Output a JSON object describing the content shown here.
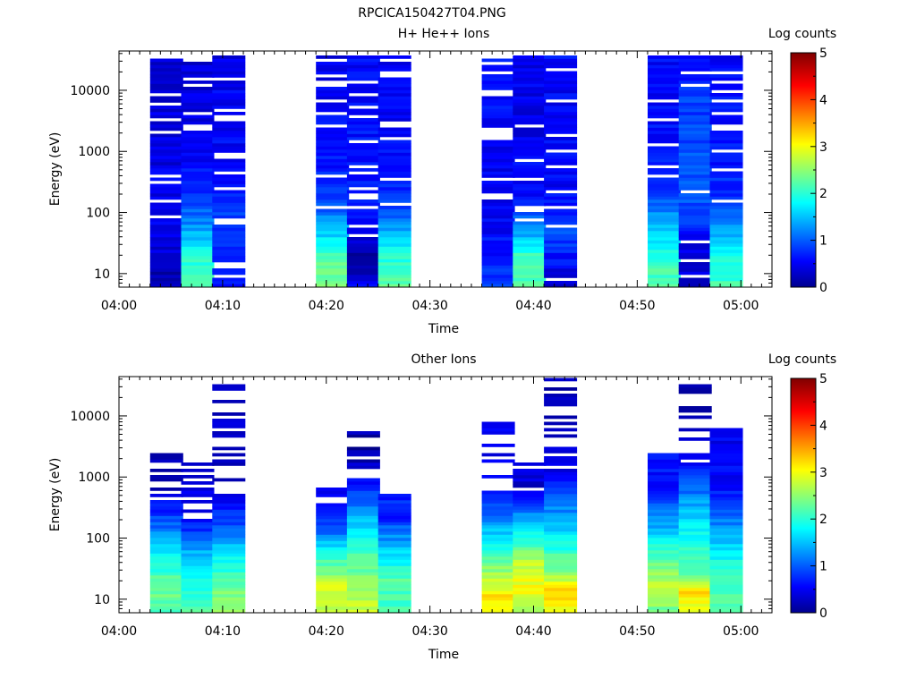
{
  "figure_title": "RPCICA150427T04.PNG",
  "colorbar_scale": {
    "label": "Log counts",
    "ticks": [
      "0",
      "1",
      "2",
      "3",
      "4",
      "5"
    ],
    "range": [
      0,
      5
    ]
  },
  "chart_data": [
    {
      "type": "heatmap",
      "title": "H+ He++ Ions",
      "xlabel": "Time",
      "ylabel": "Energy (eV)",
      "colorbar_label": "Log counts",
      "xlim": [
        "04:00",
        "05:03"
      ],
      "ylim": [
        6,
        44000
      ],
      "yscale": "log",
      "xtick_labels": [
        "04:00",
        "04:10",
        "04:20",
        "04:30",
        "04:40",
        "04:50",
        "05:00"
      ],
      "ytick_labels": [
        "10",
        "100",
        "1000",
        "10000"
      ],
      "column_times": [
        "04:03",
        "04:06",
        "04:09",
        "04:19",
        "04:22",
        "04:25",
        "04:35",
        "04:38",
        "04:41",
        "04:51",
        "04:54",
        "04:57"
      ],
      "column_profiles": [
        [
          [
            0,
            0.2
          ],
          [
            20,
            0.6
          ],
          [
            40,
            0.5
          ],
          [
            80,
            0.4
          ]
        ],
        [
          [
            0,
            2.2
          ],
          [
            10,
            2.0
          ],
          [
            18,
            1.4
          ],
          [
            30,
            0.8
          ],
          [
            50,
            0.5
          ],
          [
            80,
            0.4
          ]
        ],
        [
          [
            0,
            0.6
          ],
          [
            10,
            0.8
          ],
          [
            20,
            1.0
          ],
          [
            30,
            0.7
          ],
          [
            50,
            0.6
          ],
          [
            80,
            0.5
          ]
        ],
        [
          [
            0,
            2.5
          ],
          [
            10,
            2.2
          ],
          [
            18,
            1.5
          ],
          [
            26,
            1.0
          ],
          [
            40,
            0.7
          ],
          [
            80,
            0.5
          ]
        ],
        [
          [
            0,
            0.8
          ],
          [
            5,
            0.2
          ],
          [
            12,
            0.2
          ],
          [
            22,
            0.8
          ],
          [
            40,
            0.7
          ],
          [
            80,
            0.6
          ]
        ],
        [
          [
            0,
            2.4
          ],
          [
            10,
            2.0
          ],
          [
            18,
            1.4
          ],
          [
            28,
            0.8
          ],
          [
            50,
            0.6
          ],
          [
            80,
            0.5
          ]
        ],
        [
          [
            0,
            0.9
          ],
          [
            12,
            0.7
          ],
          [
            30,
            0.5
          ],
          [
            50,
            0.6
          ],
          [
            80,
            0.8
          ]
        ],
        [
          [
            0,
            2.3
          ],
          [
            10,
            2.1
          ],
          [
            18,
            1.3
          ],
          [
            28,
            0.7
          ],
          [
            50,
            0.5
          ],
          [
            80,
            0.6
          ]
        ],
        [
          [
            0,
            0.3
          ],
          [
            8,
            0.7
          ],
          [
            18,
            1.0
          ],
          [
            30,
            0.6
          ],
          [
            60,
            0.6
          ],
          [
            80,
            0.7
          ]
        ],
        [
          [
            0,
            2.3
          ],
          [
            10,
            2.1
          ],
          [
            18,
            1.6
          ],
          [
            28,
            1.0
          ],
          [
            40,
            0.7
          ],
          [
            80,
            0.6
          ]
        ],
        [
          [
            0,
            0.4
          ],
          [
            12,
            0.5
          ],
          [
            24,
            1.0
          ],
          [
            40,
            1.0
          ],
          [
            60,
            0.9
          ],
          [
            80,
            0.6
          ]
        ],
        [
          [
            0,
            2.2
          ],
          [
            10,
            2.0
          ],
          [
            18,
            1.4
          ],
          [
            28,
            0.9
          ],
          [
            40,
            0.7
          ],
          [
            80,
            0.6
          ]
        ]
      ],
      "column_top_bins": [
        74,
        74,
        74,
        74,
        74,
        74,
        74,
        74,
        74,
        74,
        74,
        74
      ]
    },
    {
      "type": "heatmap",
      "title": "Other Ions",
      "xlabel": "Time",
      "ylabel": "Energy (eV)",
      "colorbar_label": "Log counts",
      "xlim": [
        "04:00",
        "05:03"
      ],
      "ylim": [
        6,
        44000
      ],
      "yscale": "log",
      "xtick_labels": [
        "04:00",
        "04:10",
        "04:20",
        "04:30",
        "04:40",
        "04:50",
        "05:00"
      ],
      "ytick_labels": [
        "10",
        "100",
        "1000",
        "10000"
      ],
      "column_times": [
        "04:03",
        "04:06",
        "04:09",
        "04:19",
        "04:22",
        "04:25",
        "04:35",
        "04:38",
        "04:41",
        "04:51",
        "04:54",
        "04:57"
      ],
      "column_profiles": [
        [
          [
            0,
            2.1
          ],
          [
            5,
            2.4
          ],
          [
            12,
            2.2
          ],
          [
            22,
            1.5
          ],
          [
            32,
            0.8
          ],
          [
            40,
            0.3
          ]
        ],
        [
          [
            0,
            2.3
          ],
          [
            10,
            2.0
          ],
          [
            22,
            1.3
          ],
          [
            30,
            0.5
          ]
        ],
        [
          [
            0,
            2.6
          ],
          [
            8,
            2.4
          ],
          [
            18,
            1.8
          ],
          [
            28,
            1.0
          ],
          [
            40,
            0.4
          ]
        ],
        [
          [
            0,
            2.8
          ],
          [
            8,
            2.9
          ],
          [
            16,
            2.2
          ],
          [
            24,
            1.3
          ],
          [
            34,
            0.5
          ]
        ],
        [
          [
            0,
            2.9
          ],
          [
            8,
            2.6
          ],
          [
            18,
            2.2
          ],
          [
            30,
            1.5
          ],
          [
            40,
            0.7
          ],
          [
            50,
            0.2
          ]
        ],
        [
          [
            0,
            2.2
          ],
          [
            10,
            2.3
          ],
          [
            20,
            1.6
          ],
          [
            30,
            0.8
          ]
        ],
        [
          [
            0,
            3.0
          ],
          [
            4,
            3.3
          ],
          [
            10,
            2.8
          ],
          [
            18,
            2.2
          ],
          [
            28,
            1.4
          ],
          [
            40,
            0.5
          ]
        ],
        [
          [
            0,
            2.6
          ],
          [
            6,
            3.1
          ],
          [
            14,
            2.9
          ],
          [
            24,
            2.0
          ],
          [
            32,
            1.2
          ],
          [
            40,
            0.4
          ]
        ],
        [
          [
            0,
            3.0
          ],
          [
            6,
            3.4
          ],
          [
            12,
            2.6
          ],
          [
            24,
            1.8
          ],
          [
            34,
            1.2
          ],
          [
            46,
            0.5
          ],
          [
            54,
            0.3
          ]
        ],
        [
          [
            0,
            2.4
          ],
          [
            8,
            2.9
          ],
          [
            18,
            2.2
          ],
          [
            28,
            1.4
          ],
          [
            40,
            0.7
          ]
        ],
        [
          [
            0,
            2.9
          ],
          [
            6,
            3.3
          ],
          [
            12,
            2.4
          ],
          [
            22,
            2.0
          ],
          [
            32,
            1.6
          ],
          [
            44,
            0.8
          ],
          [
            52,
            0.3
          ]
        ],
        [
          [
            0,
            2.2
          ],
          [
            10,
            2.3
          ],
          [
            20,
            1.7
          ],
          [
            30,
            1.2
          ],
          [
            40,
            0.6
          ]
        ]
      ],
      "column_top_bins": [
        51,
        48,
        76,
        40,
        58,
        38,
        61,
        48,
        78,
        51,
        76,
        59
      ]
    }
  ]
}
